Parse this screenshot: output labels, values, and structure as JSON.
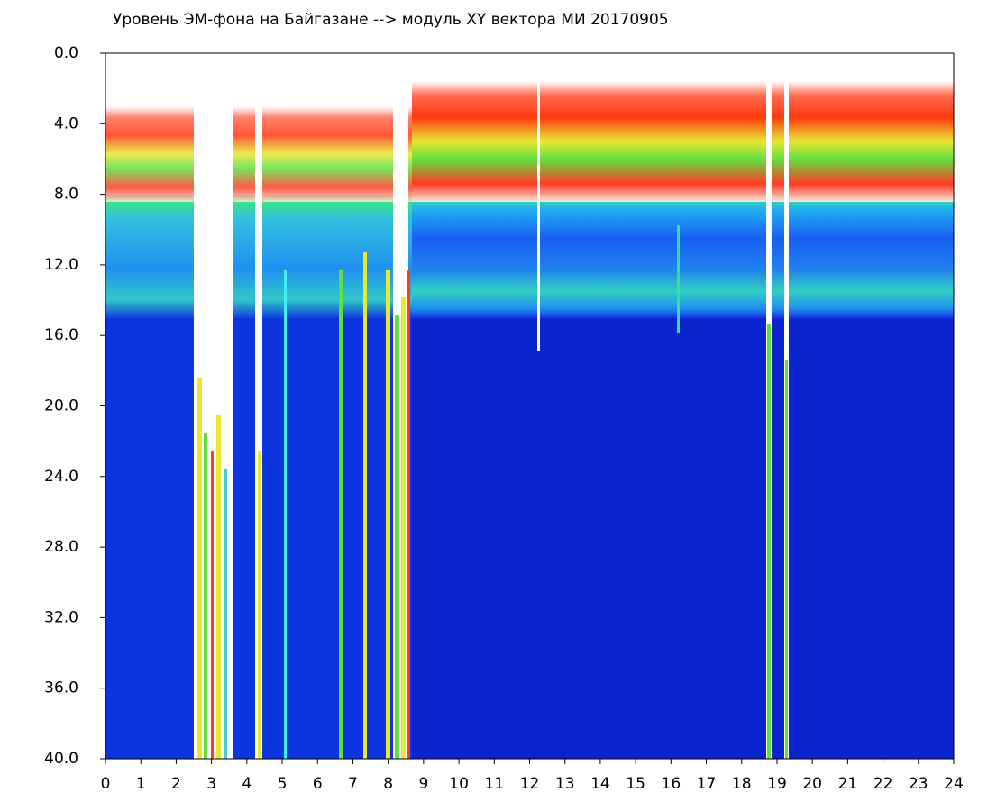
{
  "chart_data": {
    "type": "spectrogram",
    "title": "Уровень ЭМ-фона на Байгазане  -->  модуль XY вектора МИ  20170905",
    "xlim": [
      0,
      24
    ],
    "xticks": [
      0,
      1,
      2,
      3,
      4,
      5,
      6,
      7,
      8,
      9,
      10,
      11,
      12,
      13,
      14,
      15,
      16,
      17,
      18,
      19,
      20,
      21,
      22,
      23,
      24
    ],
    "ylim": [
      0,
      40
    ],
    "y_inverted": true,
    "yticks": [
      {
        "value": 0,
        "label": "0.0"
      },
      {
        "value": 4,
        "label": "4.0"
      },
      {
        "value": 8,
        "label": "8.0"
      },
      {
        "value": 12,
        "label": "12.0"
      },
      {
        "value": 16,
        "label": "16.0"
      },
      {
        "value": 20,
        "label": "20.0"
      },
      {
        "value": 24,
        "label": "24.0"
      },
      {
        "value": 28,
        "label": "28.0"
      },
      {
        "value": 32,
        "label": "32.0"
      },
      {
        "value": 36,
        "label": "36.0"
      },
      {
        "value": 40,
        "label": "40.0"
      }
    ]
  }
}
